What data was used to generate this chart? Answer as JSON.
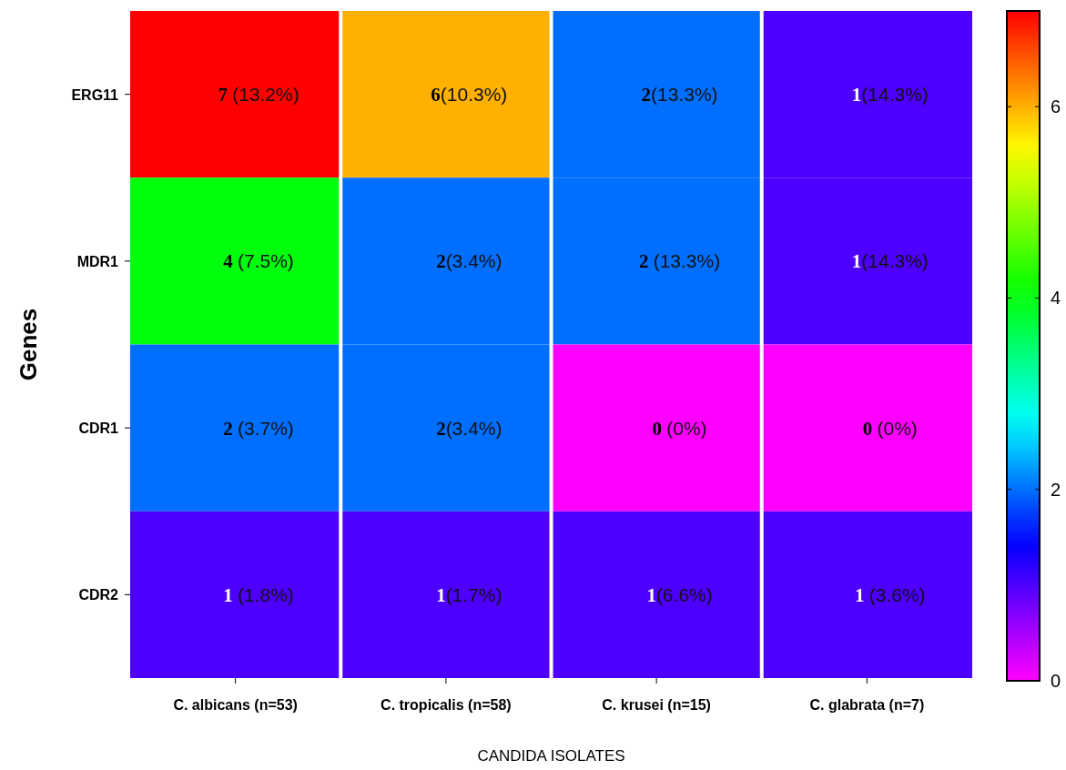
{
  "chart_data": {
    "type": "heatmap",
    "xlabel": "CANDIDA ISOLATES",
    "ylabel": "Genes",
    "categories": [
      "C. albicans (n=53)",
      "C. tropicalis (n=58)",
      "C. krusei (n=15)",
      "C. glabrata (n=7)"
    ],
    "y_categories": [
      "ERG11",
      "MDR1",
      "CDR1",
      "CDR2"
    ],
    "cells": [
      [
        7,
        6,
        2,
        1
      ],
      [
        4,
        2,
        2,
        1
      ],
      [
        2,
        2,
        0,
        0
      ],
      [
        1,
        1,
        1,
        1
      ]
    ],
    "cell_labels": [
      [
        "7 (13.2%)",
        "6(10.3%)",
        "2(13.3%)",
        "1(14.3%)"
      ],
      [
        "4 (7.5%)",
        "2(3.4%)",
        "2 (13.3%)",
        "1(14.3%)"
      ],
      [
        "2 (3.7%)",
        "2(3.4%)",
        "0 (0%)",
        "0 (0%)"
      ],
      [
        "1 (1.8%)",
        "1(1.7%)",
        "1(6.6%)",
        "1 (3.6%)"
      ]
    ],
    "clim": [
      0,
      7
    ],
    "cticks": [
      0,
      2,
      4,
      6
    ]
  }
}
